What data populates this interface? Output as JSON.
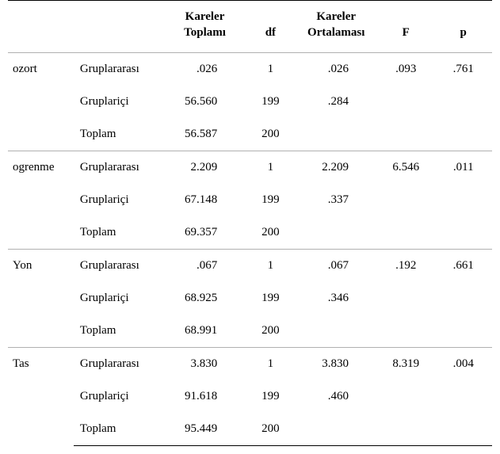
{
  "headers": {
    "col1": "",
    "col2": "",
    "sumSquares": "Kareler\nToplamı",
    "df": "df",
    "meanSquare": "Kareler\nOrtalaması",
    "F": "F",
    "p": "p"
  },
  "groups": [
    {
      "name": "ozort",
      "rows": [
        {
          "source": "Gruplararası",
          "ss": ".026",
          "df": "1",
          "ms": ".026",
          "f": ".093",
          "p": ".761"
        },
        {
          "source": "Gruplariçi",
          "ss": "56.560",
          "df": "199",
          "ms": ".284",
          "f": "",
          "p": ""
        },
        {
          "source": "Toplam",
          "ss": "56.587",
          "df": "200",
          "ms": "",
          "f": "",
          "p": ""
        }
      ]
    },
    {
      "name": "ogrenme",
      "rows": [
        {
          "source": "Gruplararası",
          "ss": "2.209",
          "df": "1",
          "ms": "2.209",
          "f": "6.546",
          "p": ".011"
        },
        {
          "source": "Gruplariçi",
          "ss": "67.148",
          "df": "199",
          "ms": ".337",
          "f": "",
          "p": ""
        },
        {
          "source": "Toplam",
          "ss": "69.357",
          "df": "200",
          "ms": "",
          "f": "",
          "p": ""
        }
      ]
    },
    {
      "name": "Yon",
      "rows": [
        {
          "source": "Gruplararası",
          "ss": ".067",
          "df": "1",
          "ms": ".067",
          "f": ".192",
          "p": ".661"
        },
        {
          "source": "Gruplariçi",
          "ss": "68.925",
          "df": "199",
          "ms": ".346",
          "f": "",
          "p": ""
        },
        {
          "source": "Toplam",
          "ss": "68.991",
          "df": "200",
          "ms": "",
          "f": "",
          "p": ""
        }
      ]
    },
    {
      "name": "Tas",
      "rows": [
        {
          "source": "Gruplararası",
          "ss": "3.830",
          "df": "1",
          "ms": "3.830",
          "f": "8.319",
          "p": ".004"
        },
        {
          "source": "Gruplariçi",
          "ss": "91.618",
          "df": "199",
          "ms": ".460",
          "f": "",
          "p": ""
        },
        {
          "source": "Toplam",
          "ss": "95.449",
          "df": "200",
          "ms": "",
          "f": "",
          "p": ""
        }
      ]
    }
  ]
}
